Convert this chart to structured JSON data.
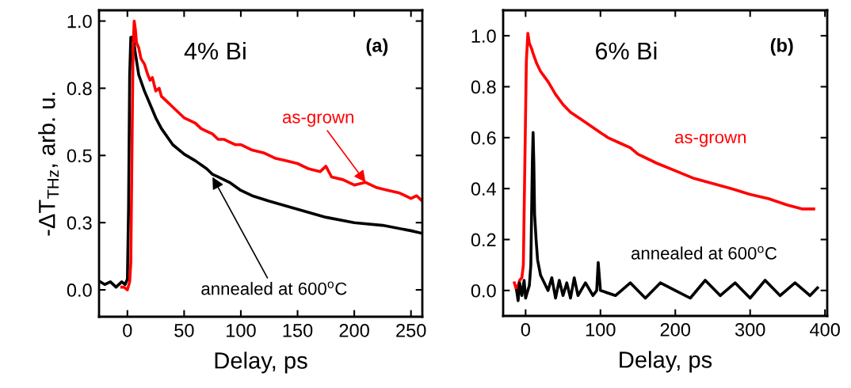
{
  "chart_data": [
    {
      "type": "line",
      "xlabel": "Delay, ps",
      "ylabel": "-ΔT$_{THz}$, arb. u.",
      "xlim": [
        -25,
        260
      ],
      "ylim": [
        -0.1,
        1.04
      ],
      "xticks": [
        0,
        50,
        100,
        150,
        200,
        250
      ],
      "yticks": [
        {
          "value": 0,
          "label": "0.0"
        },
        {
          "value": 0.25,
          "label": "0.3"
        },
        {
          "value": 0.5,
          "label": "0.5"
        },
        {
          "value": 0.75,
          "label": "0.8"
        },
        {
          "value": 1,
          "label": "1.0"
        }
      ],
      "grid": false,
      "legend": false,
      "marker": "none",
      "line_style": "solid",
      "series": [
        {
          "color": "#000000",
          "x": [
            -24,
            -20,
            -15,
            -10,
            -5,
            -2,
            0,
            1,
            2,
            3,
            5,
            7,
            10,
            15,
            20,
            25,
            30,
            40,
            50,
            60,
            70,
            75,
            80,
            90,
            100,
            110,
            125,
            150,
            175,
            200,
            225,
            250,
            260
          ],
          "values": [
            0.03,
            0.02,
            0.03,
            0.01,
            0.03,
            0.02,
            0.04,
            0.3,
            0.8,
            0.94,
            0.94,
            0.88,
            0.8,
            0.74,
            0.69,
            0.64,
            0.6,
            0.54,
            0.505,
            0.48,
            0.45,
            0.43,
            0.42,
            0.4,
            0.37,
            0.35,
            0.33,
            0.3,
            0.27,
            0.25,
            0.24,
            0.22,
            0.21
          ]
        },
        {
          "color": "#ff0000",
          "x": [
            -5,
            -3,
            0,
            2,
            3,
            4,
            5,
            6,
            7,
            8,
            10,
            12,
            15,
            18,
            20,
            22,
            25,
            28,
            30,
            35,
            40,
            45,
            50,
            55,
            60,
            65,
            70,
            75,
            80,
            85,
            90,
            95,
            100,
            110,
            120,
            130,
            140,
            150,
            160,
            170,
            175,
            180,
            190,
            200,
            210,
            220,
            230,
            240,
            250,
            255,
            260
          ],
          "values": [
            0.01,
            0.01,
            0.0,
            0.03,
            0.1,
            0.5,
            0.9,
            1.0,
            0.97,
            0.92,
            0.9,
            0.86,
            0.84,
            0.8,
            0.78,
            0.79,
            0.74,
            0.75,
            0.72,
            0.7,
            0.68,
            0.66,
            0.64,
            0.63,
            0.62,
            0.6,
            0.59,
            0.58,
            0.56,
            0.56,
            0.55,
            0.54,
            0.54,
            0.52,
            0.51,
            0.49,
            0.48,
            0.47,
            0.45,
            0.44,
            0.46,
            0.42,
            0.41,
            0.39,
            0.4,
            0.38,
            0.37,
            0.36,
            0.34,
            0.35,
            0.33
          ]
        }
      ],
      "annotations": [
        "4% Bi",
        "(a)",
        {
          "text": "as-grown",
          "x": 210,
          "y": 0.4
        },
        {
          "text": "annealed at 600$^{o}$C",
          "x": 75,
          "y": 0.42
        }
      ]
    },
    {
      "type": "line",
      "xlabel": "Delay, ps",
      "xlim": [
        -30,
        403
      ],
      "ylim": [
        -0.1,
        1.1
      ],
      "xticks": [
        0,
        100,
        200,
        300,
        400
      ],
      "yticks": [
        {
          "value": 0,
          "label": "0.0"
        },
        {
          "value": 0.2,
          "label": "0.2"
        },
        {
          "value": 0.4,
          "label": "0.4"
        },
        {
          "value": 0.6,
          "label": "0.6"
        },
        {
          "value": 0.8,
          "label": "0.8"
        },
        {
          "value": 1,
          "label": "1.0"
        }
      ],
      "grid": false,
      "legend": false,
      "marker": "none",
      "line_style": "solid",
      "series": [
        {
          "color": "#ff0000",
          "x": [
            -15,
            -12,
            -8,
            -5,
            -3,
            -1,
            1,
            3,
            5,
            8,
            10,
            15,
            20,
            25,
            30,
            40,
            50,
            60,
            75,
            90,
            100,
            110,
            125,
            140,
            150,
            175,
            200,
            225,
            250,
            275,
            300,
            325,
            350,
            370,
            385
          ],
          "values": [
            0.03,
            0.0,
            0.04,
            0.05,
            0.1,
            0.5,
            0.9,
            1.01,
            0.97,
            0.95,
            0.93,
            0.89,
            0.86,
            0.84,
            0.82,
            0.77,
            0.73,
            0.7,
            0.67,
            0.64,
            0.62,
            0.6,
            0.58,
            0.56,
            0.535,
            0.5,
            0.47,
            0.44,
            0.42,
            0.4,
            0.377,
            0.36,
            0.335,
            0.32,
            0.32
          ]
        },
        {
          "color": "#000000",
          "x": [
            -12,
            -10,
            -8,
            -5,
            -2,
            0,
            3,
            5,
            7,
            8,
            9,
            10,
            11,
            12,
            14,
            16,
            20,
            25,
            30,
            35,
            40,
            45,
            50,
            55,
            60,
            65,
            70,
            80,
            90,
            95,
            97,
            100,
            120,
            140,
            160,
            180,
            200,
            220,
            240,
            260,
            280,
            300,
            320,
            340,
            360,
            380,
            390
          ],
          "values": [
            0.0,
            -0.04,
            0.03,
            -0.02,
            0.04,
            -0.03,
            0.0,
            0.02,
            0.1,
            0.3,
            0.5,
            0.62,
            0.5,
            0.3,
            0.2,
            0.12,
            0.06,
            0.03,
            0.0,
            0.05,
            -0.03,
            0.04,
            -0.02,
            0.03,
            -0.03,
            0.05,
            -0.02,
            0.03,
            -0.02,
            0.0,
            0.11,
            0.0,
            -0.02,
            0.03,
            -0.03,
            0.03,
            0.0,
            -0.03,
            0.04,
            -0.02,
            0.03,
            -0.03,
            0.04,
            -0.02,
            0.03,
            -0.02,
            0.01
          ]
        }
      ],
      "annotations": [
        "6% Bi",
        "(b)",
        "as-grown",
        "annealed at 600$^{o}$C"
      ]
    }
  ]
}
